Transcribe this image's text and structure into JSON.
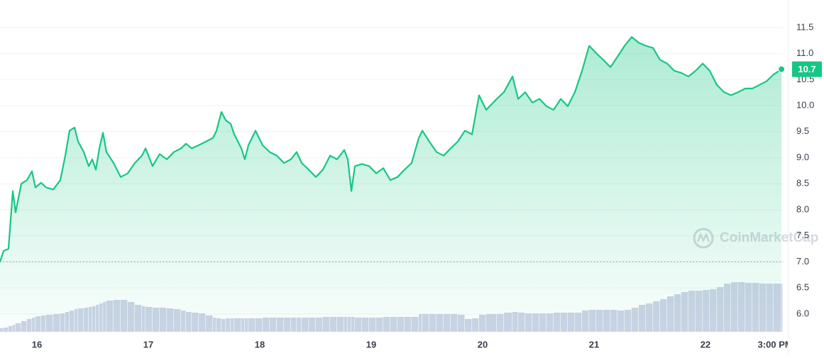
{
  "chart_data": {
    "type": "area",
    "watermark": "CoinMarketCap",
    "x": [
      15.669,
      15.701,
      15.745,
      15.784,
      15.809,
      15.86,
      15.911,
      15.956,
      15.987,
      16.038,
      16.083,
      16.147,
      16.21,
      16.255,
      16.293,
      16.338,
      16.37,
      16.421,
      16.465,
      16.497,
      16.529,
      16.561,
      16.593,
      16.624,
      16.688,
      16.752,
      16.815,
      16.879,
      16.943,
      16.975,
      17.038,
      17.102,
      17.166,
      17.229,
      17.293,
      17.338,
      17.389,
      17.452,
      17.516,
      17.58,
      17.612,
      17.656,
      17.695,
      17.739,
      17.771,
      17.835,
      17.866,
      17.898,
      17.962,
      18.026,
      18.089,
      18.153,
      18.217,
      18.28,
      18.331,
      18.376,
      18.44,
      18.503,
      18.567,
      18.631,
      18.694,
      18.758,
      18.79,
      18.822,
      18.854,
      18.917,
      18.981,
      19.045,
      19.108,
      19.172,
      19.236,
      19.299,
      19.363,
      19.427,
      19.459,
      19.522,
      19.586,
      19.65,
      19.713,
      19.777,
      19.841,
      19.905,
      19.968,
      20.032,
      20.127,
      20.191,
      20.268,
      20.319,
      20.382,
      20.446,
      20.51,
      20.573,
      20.637,
      20.701,
      20.764,
      20.828,
      20.892,
      20.956,
      21.019,
      21.083,
      21.147,
      21.21,
      21.274,
      21.338,
      21.401,
      21.465,
      21.529,
      21.592,
      21.656,
      21.72,
      21.783,
      21.847,
      21.911,
      21.975,
      22.038,
      22.102,
      22.166,
      22.229,
      22.293,
      22.357,
      22.42,
      22.484,
      22.548,
      22.611,
      22.682
    ],
    "series": [
      {
        "color": "#16c784",
        "values": [
          7.0,
          7.21,
          7.25,
          8.36,
          7.95,
          8.5,
          8.57,
          8.74,
          8.43,
          8.52,
          8.43,
          8.39,
          8.57,
          9.04,
          9.52,
          9.58,
          9.31,
          9.11,
          8.84,
          8.97,
          8.77,
          9.18,
          9.48,
          9.11,
          8.9,
          8.63,
          8.7,
          8.9,
          9.04,
          9.18,
          8.84,
          9.07,
          8.97,
          9.11,
          9.18,
          9.27,
          9.18,
          9.24,
          9.31,
          9.38,
          9.52,
          9.88,
          9.72,
          9.65,
          9.45,
          9.18,
          8.97,
          9.24,
          9.52,
          9.24,
          9.11,
          9.04,
          8.9,
          8.97,
          9.11,
          8.9,
          8.77,
          8.63,
          8.77,
          9.04,
          8.97,
          9.15,
          8.97,
          8.36,
          8.84,
          8.88,
          8.84,
          8.7,
          8.8,
          8.57,
          8.63,
          8.77,
          8.9,
          9.38,
          9.52,
          9.31,
          9.11,
          9.04,
          9.18,
          9.31,
          9.52,
          9.45,
          10.2,
          9.92,
          10.13,
          10.26,
          10.56,
          10.13,
          10.26,
          10.06,
          10.13,
          9.99,
          9.92,
          10.13,
          9.99,
          10.26,
          10.67,
          11.15,
          11.01,
          10.88,
          10.74,
          10.94,
          11.15,
          11.32,
          11.21,
          11.15,
          11.11,
          10.88,
          10.81,
          10.67,
          10.63,
          10.56,
          10.67,
          10.81,
          10.67,
          10.4,
          10.26,
          10.2,
          10.26,
          10.33,
          10.33,
          10.4,
          10.47,
          10.6,
          10.7
        ]
      },
      {
        "color": "#cdd3e6",
        "values": [
          5,
          6,
          8,
          10,
          12,
          15,
          18,
          20,
          22,
          23,
          24,
          25,
          26,
          28,
          30,
          32,
          33,
          34,
          35,
          36,
          38,
          40,
          42,
          44,
          45,
          45,
          42,
          38,
          36,
          35,
          34,
          34,
          33,
          32,
          30,
          28,
          27,
          26,
          23,
          20,
          19,
          18,
          19,
          19,
          19,
          19,
          19,
          19,
          19,
          20,
          20,
          20,
          20,
          20,
          20,
          20,
          20,
          20,
          21,
          21,
          21,
          21,
          21,
          21,
          20,
          20,
          20,
          20,
          21,
          21,
          21,
          21,
          21,
          25,
          25,
          25,
          25,
          25,
          25,
          24,
          18,
          19,
          24,
          25,
          25,
          27,
          28,
          27,
          26,
          26,
          26,
          26,
          27,
          27,
          27,
          27,
          30,
          31,
          31,
          31,
          31,
          30,
          31,
          34,
          38,
          40,
          43,
          46,
          50,
          53,
          56,
          58,
          58,
          59,
          60,
          63,
          68,
          70,
          70,
          69,
          69,
          68,
          68,
          68,
          68
        ]
      }
    ],
    "xlim": [
      15.669,
      22.694
    ],
    "xticks": [
      16,
      17,
      18,
      19,
      20,
      21,
      22,
      {
        "value": 22.625,
        "label": "3:00 PM"
      }
    ],
    "ylim": [
      5.63,
      12.03
    ],
    "yticks": [
      {
        "value": 6,
        "label": "6.0"
      },
      6.5,
      {
        "value": 7,
        "label": "7.0"
      },
      7.5,
      {
        "value": 8,
        "label": "8.0"
      },
      8.5,
      {
        "value": 9,
        "label": "9.0"
      },
      9.5,
      {
        "value": 10,
        "label": "10.0"
      },
      10.5,
      {
        "value": 11,
        "label": "11.0"
      },
      11.5
    ],
    "grid": true
  }
}
